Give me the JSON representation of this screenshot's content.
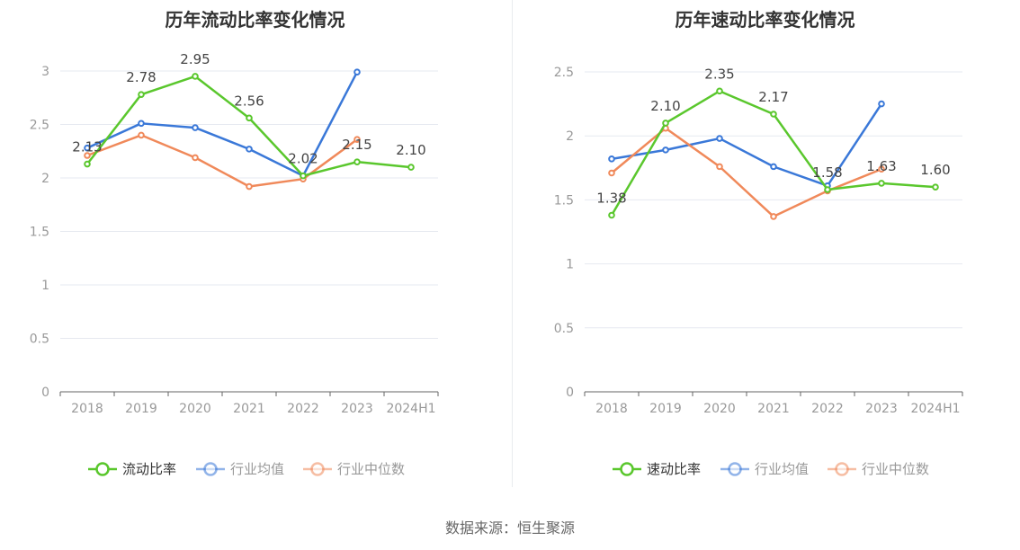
{
  "source_label": "数据来源：恒生聚源",
  "chart_data": [
    {
      "type": "line",
      "title": "历年流动比率变化情况",
      "categories": [
        "2018",
        "2019",
        "2020",
        "2021",
        "2022",
        "2023",
        "2024H1"
      ],
      "ylim": [
        0,
        3
      ],
      "yticks": [
        "0",
        "0.5",
        "1",
        "1.5",
        "2",
        "2.5",
        "3"
      ],
      "ytick_values": [
        0,
        0.5,
        1,
        1.5,
        2,
        2.5,
        3
      ],
      "grid": true,
      "legend_position": "bottom-center",
      "series": [
        {
          "name": "流动比率",
          "color": "#5ac72d",
          "values": [
            2.13,
            2.78,
            2.95,
            2.56,
            2.02,
            2.15,
            2.1
          ],
          "data_labels": [
            "2.13",
            "2.78",
            "2.95",
            "2.56",
            "2.02",
            "2.15",
            "2.10"
          ]
        },
        {
          "name": "行业均值",
          "color": "#3a78d8",
          "values": [
            2.28,
            2.51,
            2.47,
            2.27,
            2.02,
            2.99,
            null
          ]
        },
        {
          "name": "行业中位数",
          "color": "#f0895a",
          "values": [
            2.21,
            2.4,
            2.19,
            1.92,
            1.99,
            2.36,
            null
          ]
        }
      ]
    },
    {
      "type": "line",
      "title": "历年速动比率变化情况",
      "categories": [
        "2018",
        "2019",
        "2020",
        "2021",
        "2022",
        "2023",
        "2024H1"
      ],
      "ylim": [
        0,
        2.5
      ],
      "yticks": [
        "0",
        "0.5",
        "1",
        "1.5",
        "2",
        "2.5"
      ],
      "ytick_values": [
        0,
        0.5,
        1,
        1.5,
        2,
        2.5
      ],
      "grid": true,
      "legend_position": "bottom-center",
      "series": [
        {
          "name": "速动比率",
          "color": "#5ac72d",
          "values": [
            1.38,
            2.1,
            2.35,
            2.17,
            1.58,
            1.63,
            1.6
          ],
          "data_labels": [
            "1.38",
            "2.10",
            "2.35",
            "2.17",
            "1.58",
            "1.63",
            "1.60"
          ]
        },
        {
          "name": "行业均值",
          "color": "#3a78d8",
          "values": [
            1.82,
            1.89,
            1.98,
            1.76,
            1.61,
            2.25,
            null
          ]
        },
        {
          "name": "行业中位数",
          "color": "#f0895a",
          "values": [
            1.71,
            2.06,
            1.76,
            1.37,
            1.57,
            1.74,
            null
          ]
        }
      ]
    }
  ]
}
